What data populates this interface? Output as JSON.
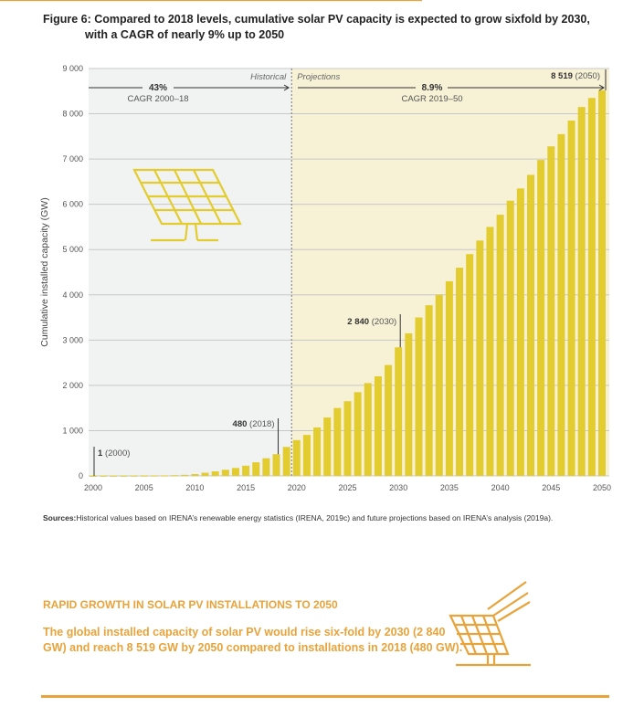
{
  "figure": {
    "title_line1": "Figure 6: Compared to 2018 levels, cumulative solar PV capacity is expected to grow sixfold by 2030,",
    "title_line2": "with a CAGR of nearly 9% up to 2050"
  },
  "chart_data": {
    "type": "bar",
    "ylabel": "Cumulative installed capacity (GW)",
    "ylim": [
      0,
      9000
    ],
    "yticks": [
      "0",
      "1 000",
      "2 000",
      "3 000",
      "4 000",
      "5 000",
      "6 000",
      "7 000",
      "8 000",
      "9 000"
    ],
    "xticks": [
      "2000",
      "2005",
      "2010",
      "2015",
      "2020",
      "2025",
      "2030",
      "2035",
      "2040",
      "2045",
      "2050"
    ],
    "grid": true,
    "colors": {
      "bar": "#e3cc2f",
      "historical_bg": "#f1f2f2",
      "projections_bg": "#f7f1d5"
    },
    "x": [
      2000,
      2001,
      2002,
      2003,
      2004,
      2005,
      2006,
      2007,
      2008,
      2009,
      2010,
      2011,
      2012,
      2013,
      2014,
      2015,
      2016,
      2017,
      2018,
      2019,
      2020,
      2021,
      2022,
      2023,
      2024,
      2025,
      2026,
      2027,
      2028,
      2029,
      2030,
      2031,
      2032,
      2033,
      2034,
      2035,
      2036,
      2037,
      2038,
      2039,
      2040,
      2041,
      2042,
      2043,
      2044,
      2045,
      2046,
      2047,
      2048,
      2049,
      2050
    ],
    "values": [
      1,
      2,
      2,
      3,
      4,
      5,
      7,
      9,
      15,
      23,
      40,
      70,
      100,
      135,
      175,
      225,
      300,
      390,
      480,
      640,
      790,
      905,
      1070,
      1290,
      1500,
      1650,
      1850,
      2050,
      2200,
      2450,
      2840,
      3150,
      3500,
      3770,
      4000,
      4300,
      4600,
      4900,
      5200,
      5500,
      5770,
      6080,
      6350,
      6650,
      6980,
      7280,
      7550,
      7850,
      8150,
      8350,
      8519
    ],
    "regions": {
      "historical": "Historical",
      "projections": "Projections"
    },
    "annotations": {
      "cagr_hist_value": "43%",
      "cagr_hist_label": "CAGR 2000–18",
      "cagr_proj_value": "8.9%",
      "cagr_proj_label": "CAGR 2019–50",
      "a2050_value": "8 519",
      "a2050_year": "(2050)",
      "a2030_value": "2 840",
      "a2030_year": "(2030)",
      "a2018_value": "480",
      "a2018_year": "(2018)",
      "a2000_value": "1",
      "a2000_year": "(2000)"
    }
  },
  "sources": {
    "label": "Sources:",
    "text": "Historical values based on IRENA’s renewable energy statistics (IRENA, 2019c) and future projections based on IRENA’s analysis (2019a)."
  },
  "callout": {
    "heading": "RAPID GROWTH IN SOLAR PV INSTALLATIONS TO 2050",
    "text": "The global installed capacity of solar PV would rise six-fold by 2030 (2 840 GW) and reach 8 519 GW by 2050 compared to installations in 2018 (480 GW).",
    "icon": "solar-panel-icon",
    "accent": "#e8a33a"
  }
}
